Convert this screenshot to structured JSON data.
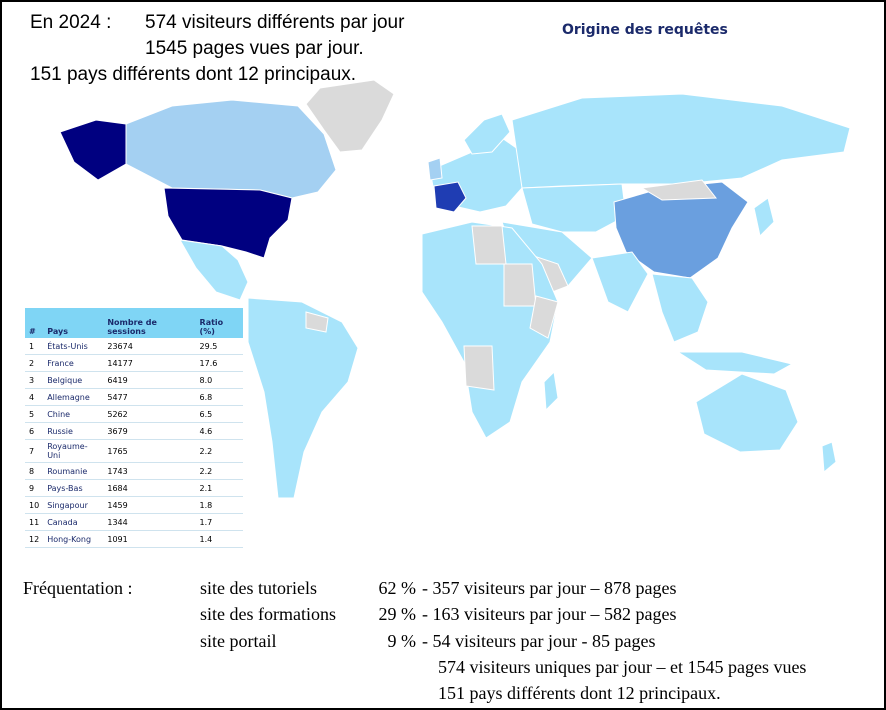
{
  "header": {
    "line1_prefix": "En 2024 :",
    "line1": "574 visiteurs différents par jour",
    "line2": "1545 pages vues par jour.",
    "line3": "151 pays différents dont 12 principaux."
  },
  "map": {
    "title": "Origine des requêtes",
    "colors": {
      "ocean": "#ffffff",
      "no_data": "#dadada",
      "level_low": "#a8e4fb",
      "level_mid": "#a4d0f2",
      "level_high": "#6a9fdf",
      "level_top2": "#1f3db3",
      "level_top1": "#000080"
    }
  },
  "table": {
    "headers": [
      "#",
      "Pays",
      "Nombre de sessions",
      "Ratio (%)"
    ],
    "rows": [
      [
        "1",
        "États-Unis",
        "23674",
        "29.5"
      ],
      [
        "2",
        "France",
        "14177",
        "17.6"
      ],
      [
        "3",
        "Belgique",
        "6419",
        "8.0"
      ],
      [
        "4",
        "Allemagne",
        "5477",
        "6.8"
      ],
      [
        "5",
        "Chine",
        "5262",
        "6.5"
      ],
      [
        "6",
        "Russie",
        "3679",
        "4.6"
      ],
      [
        "7",
        "Royaume-Uni",
        "1765",
        "2.2"
      ],
      [
        "8",
        "Roumanie",
        "1743",
        "2.2"
      ],
      [
        "9",
        "Pays-Bas",
        "1684",
        "2.1"
      ],
      [
        "10",
        "Singapour",
        "1459",
        "1.8"
      ],
      [
        "11",
        "Canada",
        "1344",
        "1.7"
      ],
      [
        "12",
        "Hong-Kong",
        "1091",
        "1.4"
      ]
    ]
  },
  "frequentation": {
    "label": "Fréquentation :",
    "sites": [
      {
        "name": "site des tutoriels",
        "pct": "62 %",
        "detail": "- 357 visiteurs par jour – 878 pages"
      },
      {
        "name": "site des formations",
        "pct": "29 %",
        "detail": "- 163 visiteurs par jour – 582 pages"
      },
      {
        "name": "site portail",
        "pct": "9 %",
        "detail": "-   54 visiteurs par jour -   85 pages"
      }
    ],
    "summary1": "574 visiteurs uniques par jour – et 1545 pages vues",
    "summary2": "151 pays différents dont 12 principaux."
  }
}
